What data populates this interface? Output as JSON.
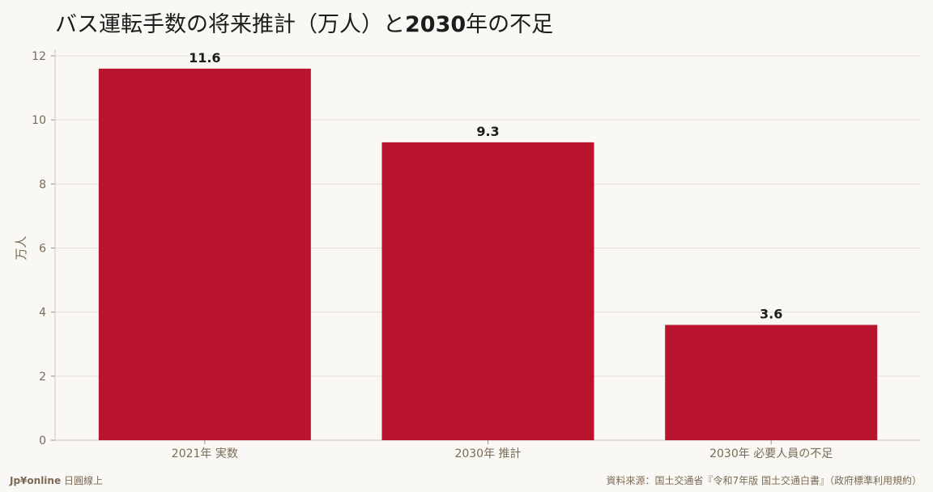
{
  "title_pre": "バス運転手数の将来推計（万人）と",
  "title_bold": "2030",
  "title_post": "年の不足",
  "footer": {
    "brand": "Jp¥online",
    "brand_suffix": "日圓線上",
    "source": "資料來源：国土交通省『令和7年版 国土交通白書』（政府標準利用規約）"
  },
  "colors": {
    "bar": "#b8142d",
    "background": "#faf8f4",
    "grid": "#e4e0d8",
    "axis_text": "#7a6a55"
  },
  "chart_data": {
    "type": "bar",
    "categories": [
      "2021年 実数",
      "2030年 推計",
      "2030年 必要人員の不足"
    ],
    "values": [
      11.6,
      9.3,
      3.6
    ],
    "value_labels": [
      "11.6",
      "9.3",
      "3.6"
    ],
    "ylabel": "万人",
    "ylim": [
      0,
      12
    ],
    "yticks": [
      0,
      2,
      4,
      6,
      8,
      10,
      12
    ],
    "grid": true
  }
}
